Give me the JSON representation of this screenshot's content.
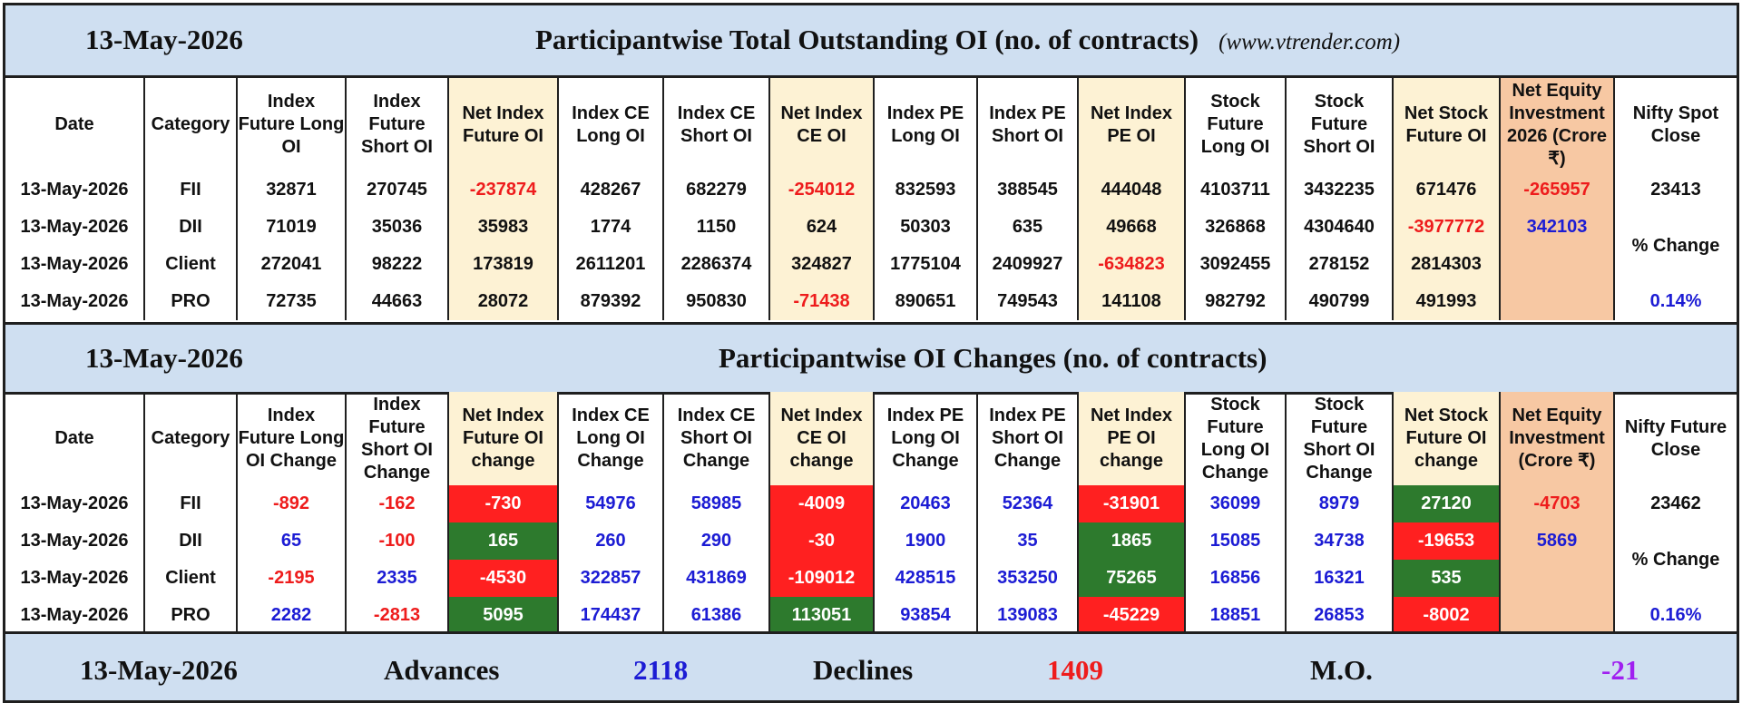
{
  "colors": {
    "band": "#cfdff1",
    "net_col": "#fdf2d4",
    "equity_col": "#f7c8a3",
    "green": "#2d7a2d",
    "red": "#ff2020",
    "red_text": "#ee1c1c",
    "blue_text": "#1c1cd4",
    "purple_text": "#a020f0"
  },
  "top": {
    "date": "13-May-2026",
    "title": "Participantwise Total Outstanding OI (no. of contracts)",
    "site": "(www.vtrender.com)",
    "headers": [
      "Date",
      "Category",
      "Index Future Long OI",
      "Index Future Short OI",
      "Net Index Future OI",
      "Index CE Long OI",
      "Index CE Short OI",
      "Net Index CE OI",
      "Index PE Long OI",
      "Index PE Short OI",
      "Net Index PE OI",
      "Stock Future Long OI",
      "Stock Future Short OI",
      "Net Stock Future OI",
      "Net Equity Investment 2026 (Crore ₹)",
      "Nifty Spot Close"
    ],
    "rows": [
      {
        "date": "13-May-2026",
        "category": "FII",
        "values": [
          "32871",
          "270745",
          "-237874",
          "428267",
          "682279",
          "-254012",
          "832593",
          "388545",
          "444048",
          "4103711",
          "3432235",
          "671476"
        ],
        "equity": "-265957"
      },
      {
        "date": "13-May-2026",
        "category": "DII",
        "values": [
          "71019",
          "35036",
          "35983",
          "1774",
          "1150",
          "624",
          "50303",
          "635",
          "49668",
          "326868",
          "4304640",
          "-3977772"
        ],
        "equity": "342103"
      },
      {
        "date": "13-May-2026",
        "category": "Client",
        "values": [
          "272041",
          "98222",
          "173819",
          "2611201",
          "2286374",
          "324827",
          "1775104",
          "2409927",
          "-634823",
          "3092455",
          "278152",
          "2814303"
        ],
        "equity": ""
      },
      {
        "date": "13-May-2026",
        "category": "PRO",
        "values": [
          "72735",
          "44663",
          "28072",
          "879392",
          "950830",
          "-71438",
          "890651",
          "749543",
          "141108",
          "982792",
          "490799",
          "491993"
        ],
        "equity": ""
      }
    ],
    "nifty_spot_close": "23413",
    "pct_change_label": "% Change",
    "pct_change": "0.14%"
  },
  "bottom": {
    "date": "13-May-2026",
    "title": "Participantwise OI Changes (no. of contracts)",
    "headers": [
      "Date",
      "Category",
      "Index Future Long OI Change",
      "Index Future Short OI Change",
      "Net Index Future OI change",
      "Index CE Long OI Change",
      "Index CE Short OI Change",
      "Net Index CE OI change",
      "Index PE Long OI Change",
      "Index PE Short OI Change",
      "Net Index PE OI change",
      "Stock Future Long OI Change",
      "Stock Future Short OI Change",
      "Net Stock Future OI change",
      "Net Equity Investment (Crore ₹)",
      "Nifty Future Close"
    ],
    "rows": [
      {
        "date": "13-May-2026",
        "category": "FII",
        "values": [
          "-892",
          "-162",
          "-730",
          "54976",
          "58985",
          "-4009",
          "20463",
          "52364",
          "-31901",
          "36099",
          "8979",
          "27120"
        ],
        "equity": "-4703"
      },
      {
        "date": "13-May-2026",
        "category": "DII",
        "values": [
          "65",
          "-100",
          "165",
          "260",
          "290",
          "-30",
          "1900",
          "35",
          "1865",
          "15085",
          "34738",
          "-19653"
        ],
        "equity": "5869"
      },
      {
        "date": "13-May-2026",
        "category": "Client",
        "values": [
          "-2195",
          "2335",
          "-4530",
          "322857",
          "431869",
          "-109012",
          "428515",
          "353250",
          "75265",
          "16856",
          "16321",
          "535"
        ],
        "equity": ""
      },
      {
        "date": "13-May-2026",
        "category": "PRO",
        "values": [
          "2282",
          "-2813",
          "5095",
          "174437",
          "61386",
          "113051",
          "93854",
          "139083",
          "-45229",
          "18851",
          "26853",
          "-8002"
        ],
        "equity": ""
      }
    ],
    "nifty_future_close": "23462",
    "pct_change_label": "% Change",
    "pct_change": "0.16%"
  },
  "footer": {
    "date": "13-May-2026",
    "advances_label": "Advances",
    "advances": "2118",
    "declines_label": "Declines",
    "declines": "1409",
    "mo_label": "M.O.",
    "mo": "-21"
  }
}
